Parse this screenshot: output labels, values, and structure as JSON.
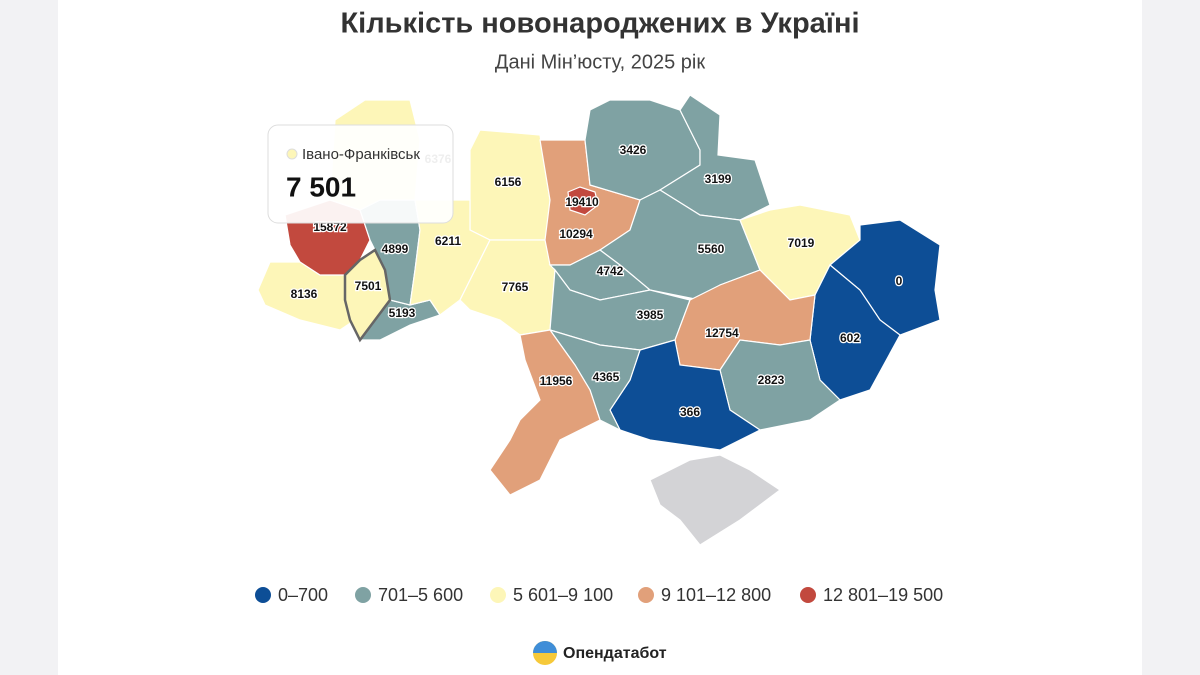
{
  "chart_data": {
    "type": "choropleth",
    "title": "Кількість новонароджених в Україні",
    "subtitle": "Дані Мін’юсту, 2025 рік",
    "regions": [
      {
        "value": 8136,
        "color": "#fdf6b8"
      },
      {
        "value": 15872,
        "color": "#c2493e"
      },
      {
        "value": 7501,
        "color": "#fdf6b8"
      },
      {
        "value": 5193,
        "color": "#7fa2a3"
      },
      {
        "value": 4899,
        "color": "#7fa2a3"
      },
      {
        "value": 6376,
        "color": "#fdf6b8"
      },
      {
        "value": 6156,
        "color": "#fdf6b8"
      },
      {
        "value": 6211,
        "color": "#fdf6b8"
      },
      {
        "value": 7765,
        "color": "#fdf6b8"
      },
      {
        "value": 10294,
        "color": "#e1a07a"
      },
      {
        "value": 19410,
        "color": "#c2493e"
      },
      {
        "value": 3426,
        "color": "#7fa2a3"
      },
      {
        "value": 3199,
        "color": "#7fa2a3"
      },
      {
        "value": 5560,
        "color": "#7fa2a3"
      },
      {
        "value": 4742,
        "color": "#7fa2a3"
      },
      {
        "value": 3985,
        "color": "#7fa2a3"
      },
      {
        "value": 7019,
        "color": "#fdf6b8"
      },
      {
        "value": 0,
        "color": "#0d4e96"
      },
      {
        "value": 602,
        "color": "#0d4e96"
      },
      {
        "value": 12754,
        "color": "#e1a07a"
      },
      {
        "value": 2823,
        "color": "#7fa2a3"
      },
      {
        "value": 366,
        "color": "#0d4e96"
      },
      {
        "value": 4365,
        "color": "#7fa2a3"
      },
      {
        "value": 11956,
        "color": "#e1a07a"
      },
      {
        "value": null,
        "color": "#d3d3d6"
      }
    ],
    "legend": [
      {
        "label": "0–700",
        "color": "#0d4e96"
      },
      {
        "label": "701–5 600",
        "color": "#7fa2a3"
      },
      {
        "label": "5 601–9 100",
        "color": "#fdf6b8"
      },
      {
        "label": "9 101–12 800",
        "color": "#e1a07a"
      },
      {
        "label": "12 801–19 500",
        "color": "#c2493e"
      }
    ]
  },
  "tooltip": {
    "region": "Івано-Франківськ",
    "value": 7501,
    "value_label": "7 501",
    "color": "#fdf6b8"
  },
  "brand": "Опендатабот"
}
